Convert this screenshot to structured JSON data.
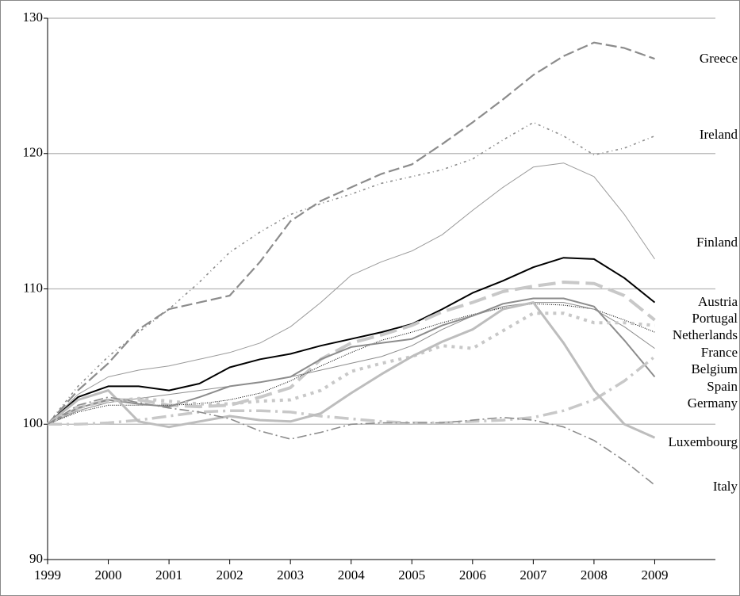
{
  "chart_data": {
    "type": "line",
    "x": [
      1999,
      1999.5,
      2000,
      2000.5,
      2001,
      2001.5,
      2002,
      2002.5,
      2003,
      2003.5,
      2004,
      2004.5,
      2005,
      2005.5,
      2006,
      2006.5,
      2007,
      2007.5,
      2008,
      2008.5,
      2009
    ],
    "xlim": [
      1999,
      2010
    ],
    "xticks": [
      1999,
      2000,
      2001,
      2002,
      2003,
      2004,
      2005,
      2006,
      2007,
      2008,
      2009
    ],
    "ylim": [
      90,
      130
    ],
    "yticks": [
      90,
      100,
      110,
      120,
      130
    ],
    "grid": true,
    "series": [
      {
        "name": "Greece",
        "color": "#8c8c8c",
        "values": [
          100,
          102.5,
          104.5,
          107,
          108.5,
          109,
          109.5,
          112,
          115,
          116.5,
          117.5,
          118.5,
          119.2,
          120.7,
          122.3,
          124,
          125.8,
          127.2,
          128.2,
          127.8,
          127
        ]
      },
      {
        "name": "Ireland",
        "color": "#8c8c8c",
        "values": [
          100,
          102.8,
          105,
          106.8,
          108.5,
          110.5,
          112.7,
          114.2,
          115.5,
          116.3,
          117,
          117.8,
          118.3,
          118.8,
          119.6,
          121,
          122.3,
          121.3,
          119.9,
          120.4,
          121.3
        ]
      },
      {
        "name": "Finland",
        "color": "#9a9a9a",
        "values": [
          100,
          102.2,
          103.5,
          104,
          104.3,
          104.8,
          105.3,
          106,
          107.2,
          109,
          111,
          112,
          112.8,
          114,
          115.8,
          117.5,
          119,
          119.3,
          118.3,
          115.5,
          112.2
        ]
      },
      {
        "name": "Austria",
        "color": "#000000",
        "values": [
          100,
          102,
          102.8,
          102.8,
          102.5,
          103,
          104.2,
          104.8,
          105.2,
          105.8,
          106.3,
          106.8,
          107.4,
          108.5,
          109.7,
          110.6,
          111.6,
          112.3,
          112.2,
          110.8,
          109
        ]
      },
      {
        "name": "Portugal",
        "color": "#c8c8c8",
        "values": [
          100,
          101.2,
          101.8,
          101.8,
          101.4,
          101.3,
          101.4,
          102,
          102.7,
          104.8,
          106,
          106.6,
          107.3,
          108.3,
          109,
          109.8,
          110.2,
          110.5,
          110.4,
          109.5,
          107.7
        ]
      },
      {
        "name": "Netherlands",
        "color": "#000000",
        "values": [
          100,
          100.9,
          101.4,
          101.4,
          101.4,
          101.5,
          101.8,
          102.3,
          103.2,
          104.3,
          105.3,
          106.2,
          106.8,
          107.5,
          108.1,
          108.6,
          108.9,
          108.8,
          108.5,
          107.7,
          106.8
        ]
      },
      {
        "name": "France",
        "color": "#8c8c8c",
        "values": [
          100,
          101,
          101.6,
          101.9,
          102.2,
          102.5,
          102.8,
          103.1,
          103.5,
          104,
          104.5,
          105,
          105.8,
          107,
          108,
          108.7,
          109,
          109,
          108.5,
          107.2,
          105.6
        ]
      },
      {
        "name": "Belgium",
        "color": "#8c8c8c",
        "values": [
          100,
          101.2,
          101.8,
          101.5,
          101.3,
          102,
          102.8,
          103.1,
          103.5,
          104.8,
          105.7,
          106,
          106.3,
          107.3,
          108,
          108.9,
          109.3,
          109.3,
          108.7,
          106.2,
          103.5
        ]
      },
      {
        "name": "Spain",
        "color": "#c8c8c8",
        "values": [
          100,
          101.3,
          101.7,
          101.9,
          101.7,
          101.5,
          101.5,
          101.7,
          101.8,
          102.5,
          103.9,
          104.5,
          105,
          105.8,
          105.6,
          106.9,
          108.2,
          108.2,
          107.5,
          107.5,
          107.3
        ]
      },
      {
        "name": "Germany",
        "color": "#c8c8c8",
        "values": [
          100,
          100,
          100.1,
          100.3,
          100.6,
          100.9,
          101,
          101,
          100.9,
          100.6,
          100.4,
          100.2,
          100.1,
          100.1,
          100.2,
          100.3,
          100.5,
          101,
          101.8,
          103.2,
          105
        ]
      },
      {
        "name": "Luxembourg",
        "color": "#bdbdbd",
        "values": [
          100,
          101.8,
          102.5,
          100.2,
          99.8,
          100.2,
          100.6,
          100.3,
          100.2,
          100.8,
          102.3,
          103.7,
          105,
          106.1,
          107,
          108.5,
          109,
          106,
          102.5,
          100,
          99
        ]
      },
      {
        "name": "Italy",
        "color": "#8c8c8c",
        "values": [
          100,
          101.4,
          102,
          101.6,
          101.2,
          100.9,
          100.4,
          99.5,
          98.9,
          99.4,
          100,
          100.1,
          100.1,
          100.1,
          100.3,
          100.5,
          100.3,
          99.8,
          98.8,
          97.3,
          95.5
        ]
      }
    ]
  }
}
